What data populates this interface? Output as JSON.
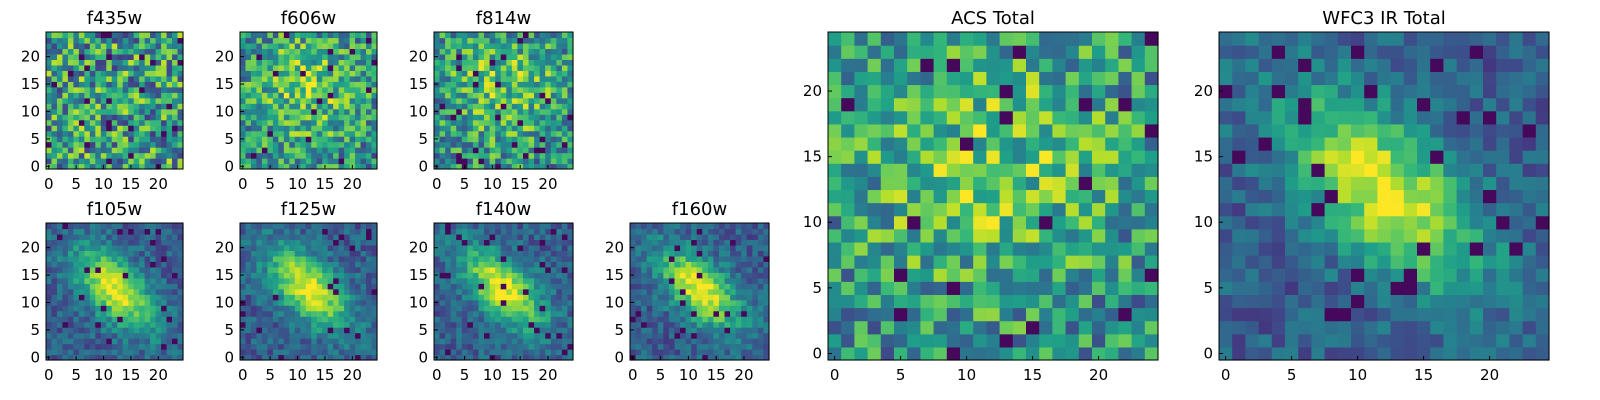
{
  "colormap": "viridis",
  "chart_data": [
    {
      "type": "heatmap",
      "title": "f435w",
      "pattern": "noise",
      "grid": false,
      "xticks": [
        "0",
        "5",
        "10",
        "15",
        "20"
      ],
      "yticks": [
        "0",
        "5",
        "10",
        "15",
        "20"
      ]
    },
    {
      "type": "heatmap",
      "title": "f606w",
      "pattern": "noise-bright",
      "grid": false,
      "xticks": [
        "0",
        "5",
        "10",
        "15",
        "20"
      ],
      "yticks": [
        "0",
        "5",
        "10",
        "15",
        "20"
      ]
    },
    {
      "type": "heatmap",
      "title": "f814w",
      "pattern": "noise-bright",
      "grid": false,
      "xticks": [
        "0",
        "5",
        "10",
        "15",
        "20"
      ],
      "yticks": [
        "0",
        "5",
        "10",
        "15",
        "20"
      ]
    },
    {
      "type": "heatmap",
      "title": "f105w",
      "pattern": "galaxy",
      "grid": false,
      "xticks": [
        "0",
        "5",
        "10",
        "15",
        "20"
      ],
      "yticks": [
        "0",
        "5",
        "10",
        "15",
        "20"
      ]
    },
    {
      "type": "heatmap",
      "title": "f125w",
      "pattern": "galaxy",
      "grid": false,
      "xticks": [
        "0",
        "5",
        "10",
        "15",
        "20"
      ],
      "yticks": [
        "0",
        "5",
        "10",
        "15",
        "20"
      ]
    },
    {
      "type": "heatmap",
      "title": "f140w",
      "pattern": "galaxy",
      "grid": false,
      "xticks": [
        "0",
        "5",
        "10",
        "15",
        "20"
      ],
      "yticks": [
        "0",
        "5",
        "10",
        "15",
        "20"
      ]
    },
    {
      "type": "heatmap",
      "title": "f160w",
      "pattern": "galaxy",
      "grid": false,
      "xticks": [
        "0",
        "5",
        "10",
        "15",
        "20"
      ],
      "yticks": [
        "0",
        "5",
        "10",
        "15",
        "20"
      ]
    },
    {
      "type": "heatmap",
      "title": "ACS Total",
      "pattern": "noise-bright",
      "grid": false,
      "xticks": [
        "0",
        "5",
        "10",
        "15",
        "20"
      ],
      "yticks": [
        "0",
        "5",
        "10",
        "15",
        "20"
      ]
    },
    {
      "type": "heatmap",
      "title": "WFC3 IR Total",
      "pattern": "galaxy",
      "grid": false,
      "xticks": [
        "0",
        "5",
        "10",
        "15",
        "20"
      ],
      "yticks": [
        "0",
        "5",
        "10",
        "15",
        "20"
      ]
    }
  ]
}
